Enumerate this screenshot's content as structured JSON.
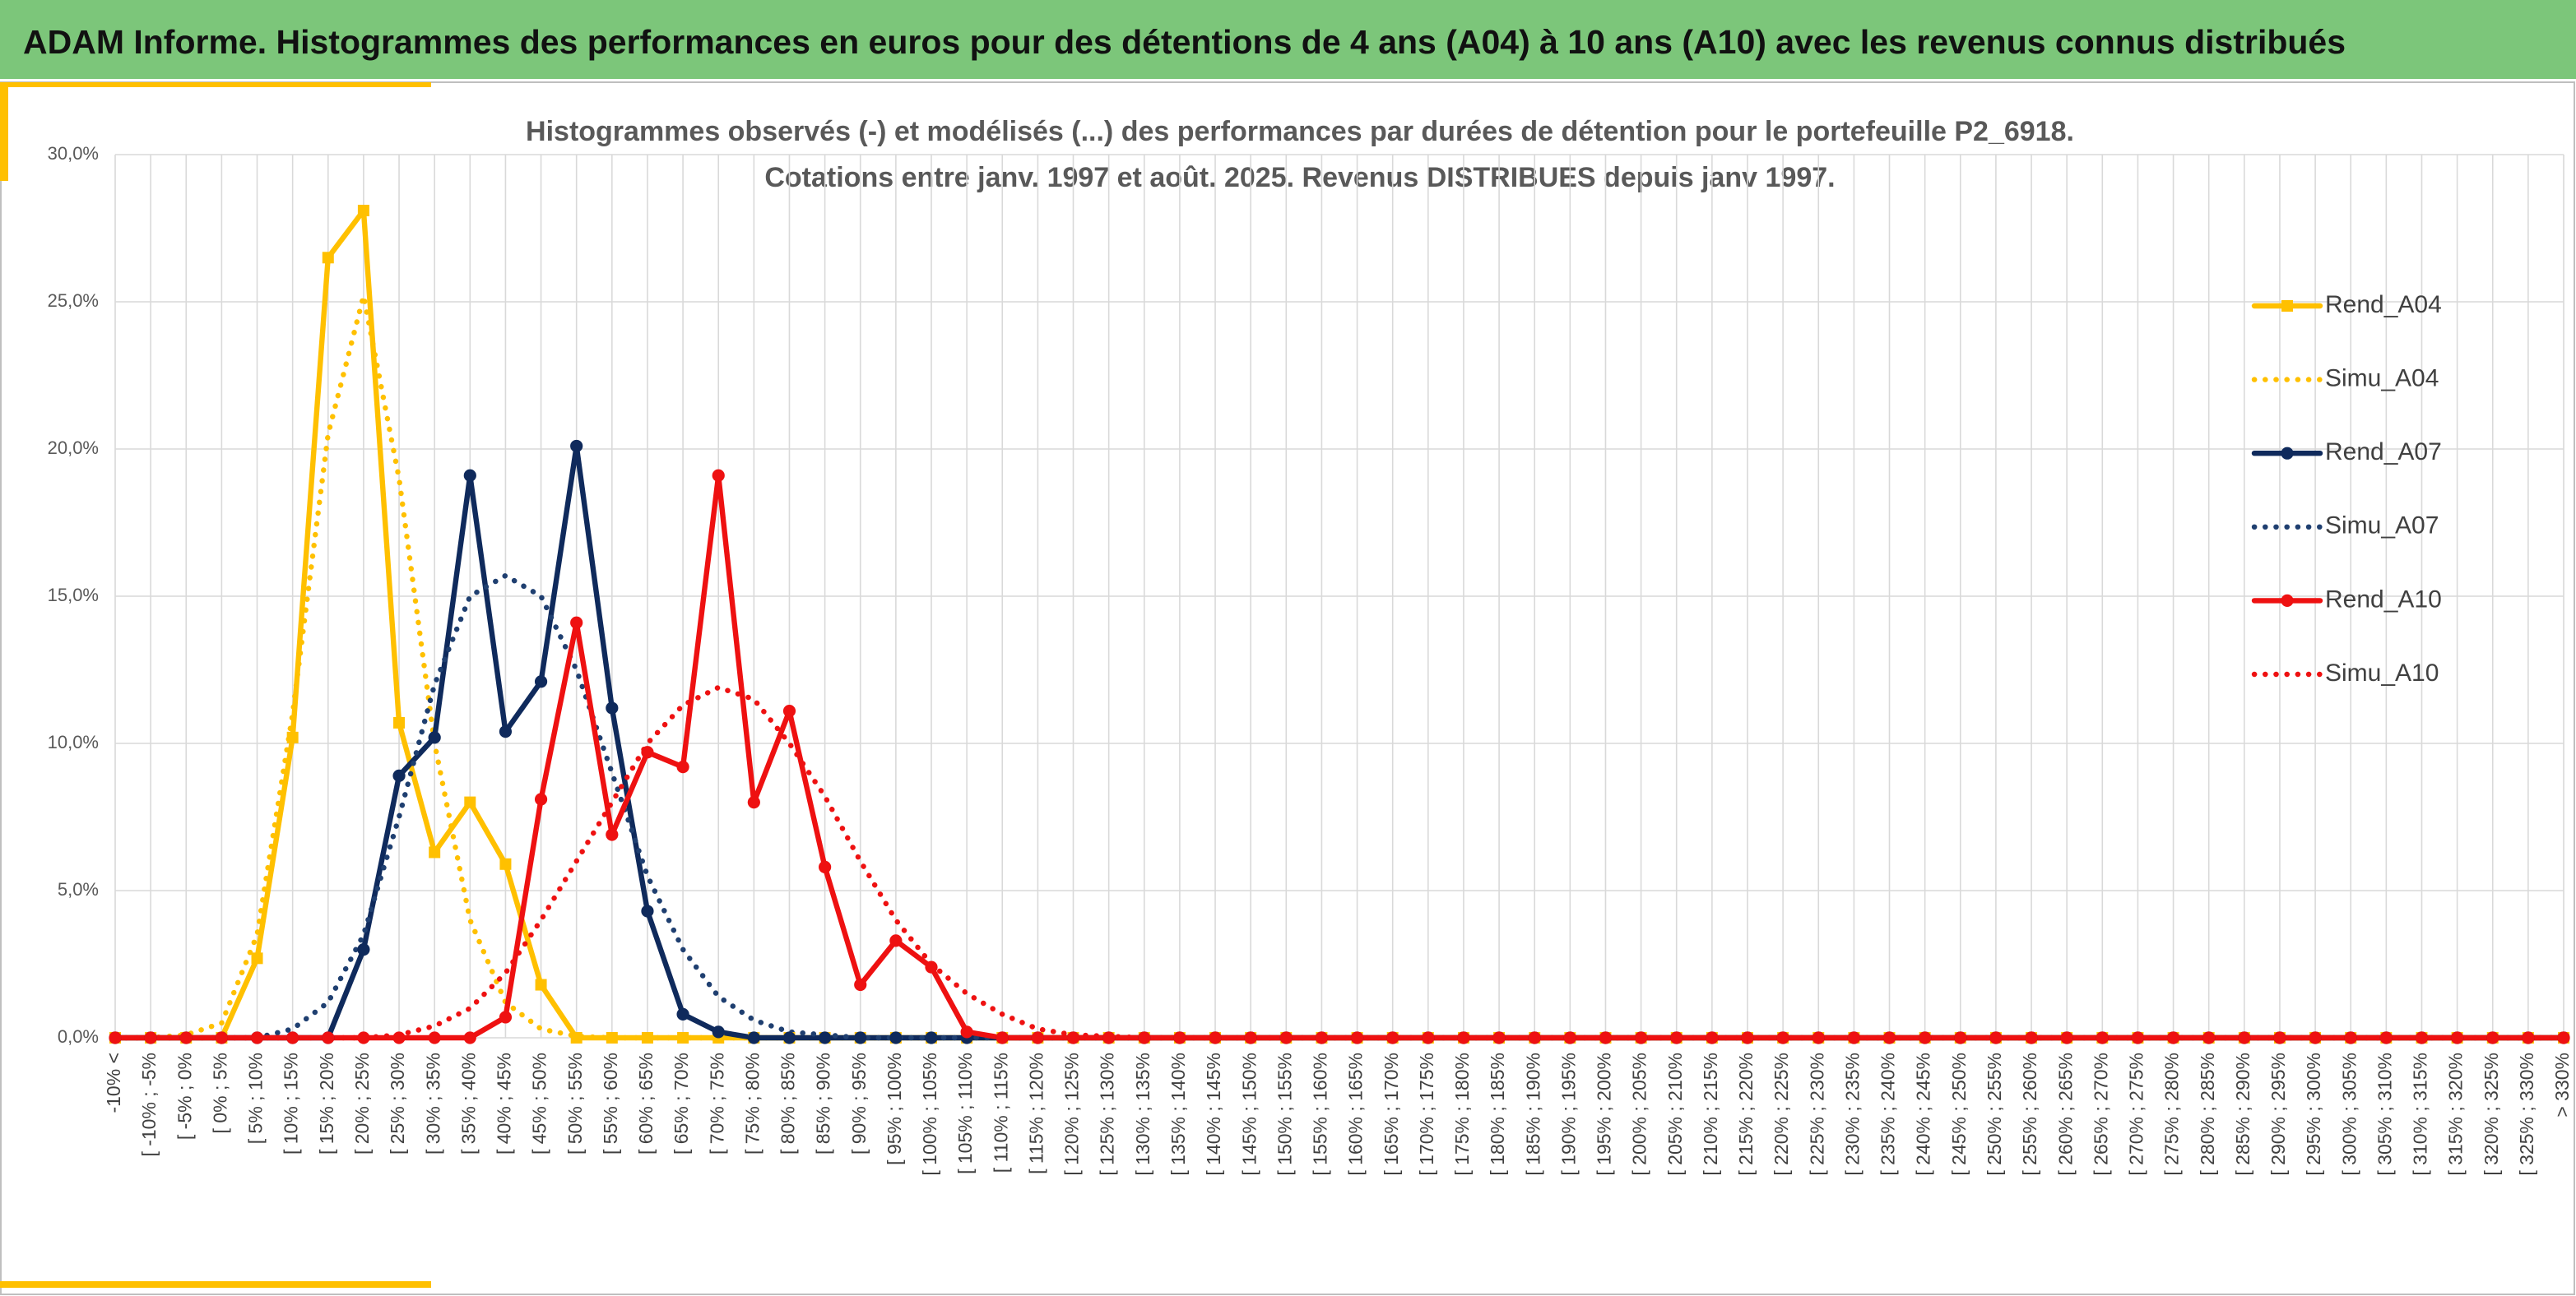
{
  "header": {
    "title": "ADAM Informe. Histogrammes des performances en euros pour des détentions de 4 ans (A04) à 10 ans (A10) avec les revenus connus distribués"
  },
  "chart_data": {
    "type": "line",
    "title": "Histogrammes observés (-) et modélisés (...) des performances par durées de détention pour le portefeuille P2_6918.",
    "subtitle": "Cotations entre janv. 1997 et août. 2025. Revenus DISTRIBUES depuis janv 1997.",
    "categories": [
      "-10% <",
      "[ -10% ; -5%",
      "[ -5% ; 0%",
      "[ 0% ; 5%",
      "[ 5% ; 10%",
      "[ 10% ; 15%",
      "[ 15% ; 20%",
      "[ 20% ; 25%",
      "[ 25% ; 30%",
      "[ 30% ; 35%",
      "[ 35% ; 40%",
      "[ 40% ; 45%",
      "[ 45% ; 50%",
      "[ 50% ; 55%",
      "[ 55% ; 60%",
      "[ 60% ; 65%",
      "[ 65% ; 70%",
      "[ 70% ; 75%",
      "[ 75% ; 80%",
      "[ 80% ; 85%",
      "[ 85% ; 90%",
      "[ 90% ; 95%",
      "[ 95% ; 100%",
      "[ 100% ; 105%",
      "[ 105% ; 110%",
      "[ 110% ; 115%",
      "[ 115% ; 120%",
      "[ 120% ; 125%",
      "[ 125% ; 130%",
      "[ 130% ; 135%",
      "[ 135% ; 140%",
      "[ 140% ; 145%",
      "[ 145% ; 150%",
      "[ 150% ; 155%",
      "[ 155% ; 160%",
      "[ 160% ; 165%",
      "[ 165% ; 170%",
      "[ 170% ; 175%",
      "[ 175% ; 180%",
      "[ 180% ; 185%",
      "[ 185% ; 190%",
      "[ 190% ; 195%",
      "[ 195% ; 200%",
      "[ 200% ; 205%",
      "[ 205% ; 210%",
      "[ 210% ; 215%",
      "[ 215% ; 220%",
      "[ 220% ; 225%",
      "[ 225% ; 230%",
      "[ 230% ; 235%",
      "[ 235% ; 240%",
      "[ 240% ; 245%",
      "[ 245% ; 250%",
      "[ 250% ; 255%",
      "[ 255% ; 260%",
      "[ 260% ; 265%",
      "[ 265% ; 270%",
      "[ 270% ; 275%",
      "[ 275% ; 280%",
      "[ 280% ; 285%",
      "[ 285% ; 290%",
      "[ 290% ; 295%",
      "[ 295% ; 300%",
      "[ 300% ; 305%",
      "[ 305% ; 310%",
      "[ 310% ; 315%",
      "[ 315% ; 320%",
      "[ 320% ; 325%",
      "[ 325% ; 330%",
      "> 330%"
    ],
    "series": [
      {
        "name": "Rend_A04",
        "color": "#ffc000",
        "style": "solid",
        "marker": "square",
        "values": [
          0,
          0,
          0,
          0,
          2.7,
          10.2,
          26.5,
          28.1,
          10.7,
          6.3,
          8.0,
          5.9,
          1.8,
          0,
          0,
          0,
          0,
          0,
          0,
          0,
          0,
          0,
          0,
          0,
          0,
          0,
          0,
          0,
          0,
          0,
          0,
          0,
          0,
          0,
          0,
          0,
          0,
          0,
          0,
          0,
          0,
          0,
          0,
          0,
          0,
          0,
          0,
          0,
          0,
          0,
          0,
          0,
          0,
          0,
          0,
          0,
          0,
          0,
          0,
          0,
          0,
          0,
          0,
          0,
          0,
          0,
          0,
          0,
          0,
          0
        ]
      },
      {
        "name": "Simu_A04",
        "color": "#ffc000",
        "style": "dotted",
        "marker": null,
        "values": [
          0,
          0,
          0.1,
          0.5,
          3.5,
          11,
          20.5,
          25.2,
          19,
          10,
          4,
          1.2,
          0.3,
          0.05,
          0,
          0,
          0,
          0,
          0,
          0,
          0,
          0,
          0,
          0,
          0,
          0,
          0,
          0,
          0,
          0,
          0,
          0,
          0,
          0,
          0,
          0,
          0,
          0,
          0,
          0,
          0,
          0,
          0,
          0,
          0,
          0,
          0,
          0,
          0,
          0,
          0,
          0,
          0,
          0,
          0,
          0,
          0,
          0,
          0,
          0,
          0,
          0,
          0,
          0,
          0,
          0,
          0,
          0,
          0,
          0
        ]
      },
      {
        "name": "Rend_A07",
        "color": "#0f2a5c",
        "style": "solid",
        "marker": "circle",
        "values": [
          0,
          0,
          0,
          0,
          0,
          0,
          0,
          3.0,
          8.9,
          10.2,
          19.1,
          10.4,
          12.1,
          20.1,
          11.2,
          4.3,
          0.8,
          0.2,
          0,
          0,
          0,
          0,
          0,
          0,
          0,
          0,
          0,
          0,
          0,
          0,
          0,
          0,
          0,
          0,
          0,
          0,
          0,
          0,
          0,
          0,
          0,
          0,
          0,
          0,
          0,
          0,
          0,
          0,
          0,
          0,
          0,
          0,
          0,
          0,
          0,
          0,
          0,
          0,
          0,
          0,
          0,
          0,
          0,
          0,
          0,
          0,
          0,
          0,
          0,
          0
        ]
      },
      {
        "name": "Simu_A07",
        "color": "#1f3f70",
        "style": "dotted",
        "marker": null,
        "values": [
          0,
          0,
          0,
          0,
          0,
          0.3,
          1.2,
          3.5,
          7.5,
          12,
          15,
          15.7,
          15,
          12.5,
          9,
          5.5,
          3,
          1.4,
          0.6,
          0.2,
          0.1,
          0,
          0,
          0,
          0,
          0,
          0,
          0,
          0,
          0,
          0,
          0,
          0,
          0,
          0,
          0,
          0,
          0,
          0,
          0,
          0,
          0,
          0,
          0,
          0,
          0,
          0,
          0,
          0,
          0,
          0,
          0,
          0,
          0,
          0,
          0,
          0,
          0,
          0,
          0,
          0,
          0,
          0,
          0,
          0,
          0,
          0,
          0,
          0,
          0
        ]
      },
      {
        "name": "Rend_A10",
        "color": "#ee1111",
        "style": "solid",
        "marker": "circle",
        "values": [
          0,
          0,
          0,
          0,
          0,
          0,
          0,
          0,
          0,
          0,
          0,
          0.7,
          8.1,
          14.1,
          6.9,
          9.7,
          9.2,
          19.1,
          8.0,
          11.1,
          5.8,
          1.8,
          3.3,
          2.4,
          0.2,
          0,
          0,
          0,
          0,
          0,
          0,
          0,
          0,
          0,
          0,
          0,
          0,
          0,
          0,
          0,
          0,
          0,
          0,
          0,
          0,
          0,
          0,
          0,
          0,
          0,
          0,
          0,
          0,
          0,
          0,
          0,
          0,
          0,
          0,
          0,
          0,
          0,
          0,
          0,
          0,
          0,
          0,
          0,
          0,
          0
        ]
      },
      {
        "name": "Simu_A10",
        "color": "#ee1111",
        "style": "dotted",
        "marker": null,
        "values": [
          0,
          0,
          0,
          0,
          0,
          0,
          0,
          0,
          0.1,
          0.4,
          1.0,
          2.2,
          4,
          6,
          8,
          10,
          11.3,
          11.9,
          11.5,
          10,
          8.2,
          6,
          4,
          2.5,
          1.5,
          0.8,
          0.3,
          0.1,
          0.05,
          0,
          0,
          0,
          0,
          0,
          0,
          0,
          0,
          0,
          0,
          0,
          0,
          0,
          0,
          0,
          0,
          0,
          0,
          0,
          0,
          0,
          0,
          0,
          0,
          0,
          0,
          0,
          0,
          0,
          0,
          0,
          0,
          0,
          0,
          0,
          0,
          0,
          0,
          0,
          0,
          0
        ]
      }
    ],
    "ylim": [
      0,
      30
    ],
    "yticks": [
      {
        "value": 0,
        "label": "0,0%"
      },
      {
        "value": 5,
        "label": "5,0%"
      },
      {
        "value": 10,
        "label": "10,0%"
      },
      {
        "value": 15,
        "label": "15,0%"
      },
      {
        "value": 20,
        "label": "20,0%"
      },
      {
        "value": 25,
        "label": "25,0%"
      },
      {
        "value": 30,
        "label": "30,0%"
      }
    ],
    "grid": true,
    "legend": "right"
  }
}
